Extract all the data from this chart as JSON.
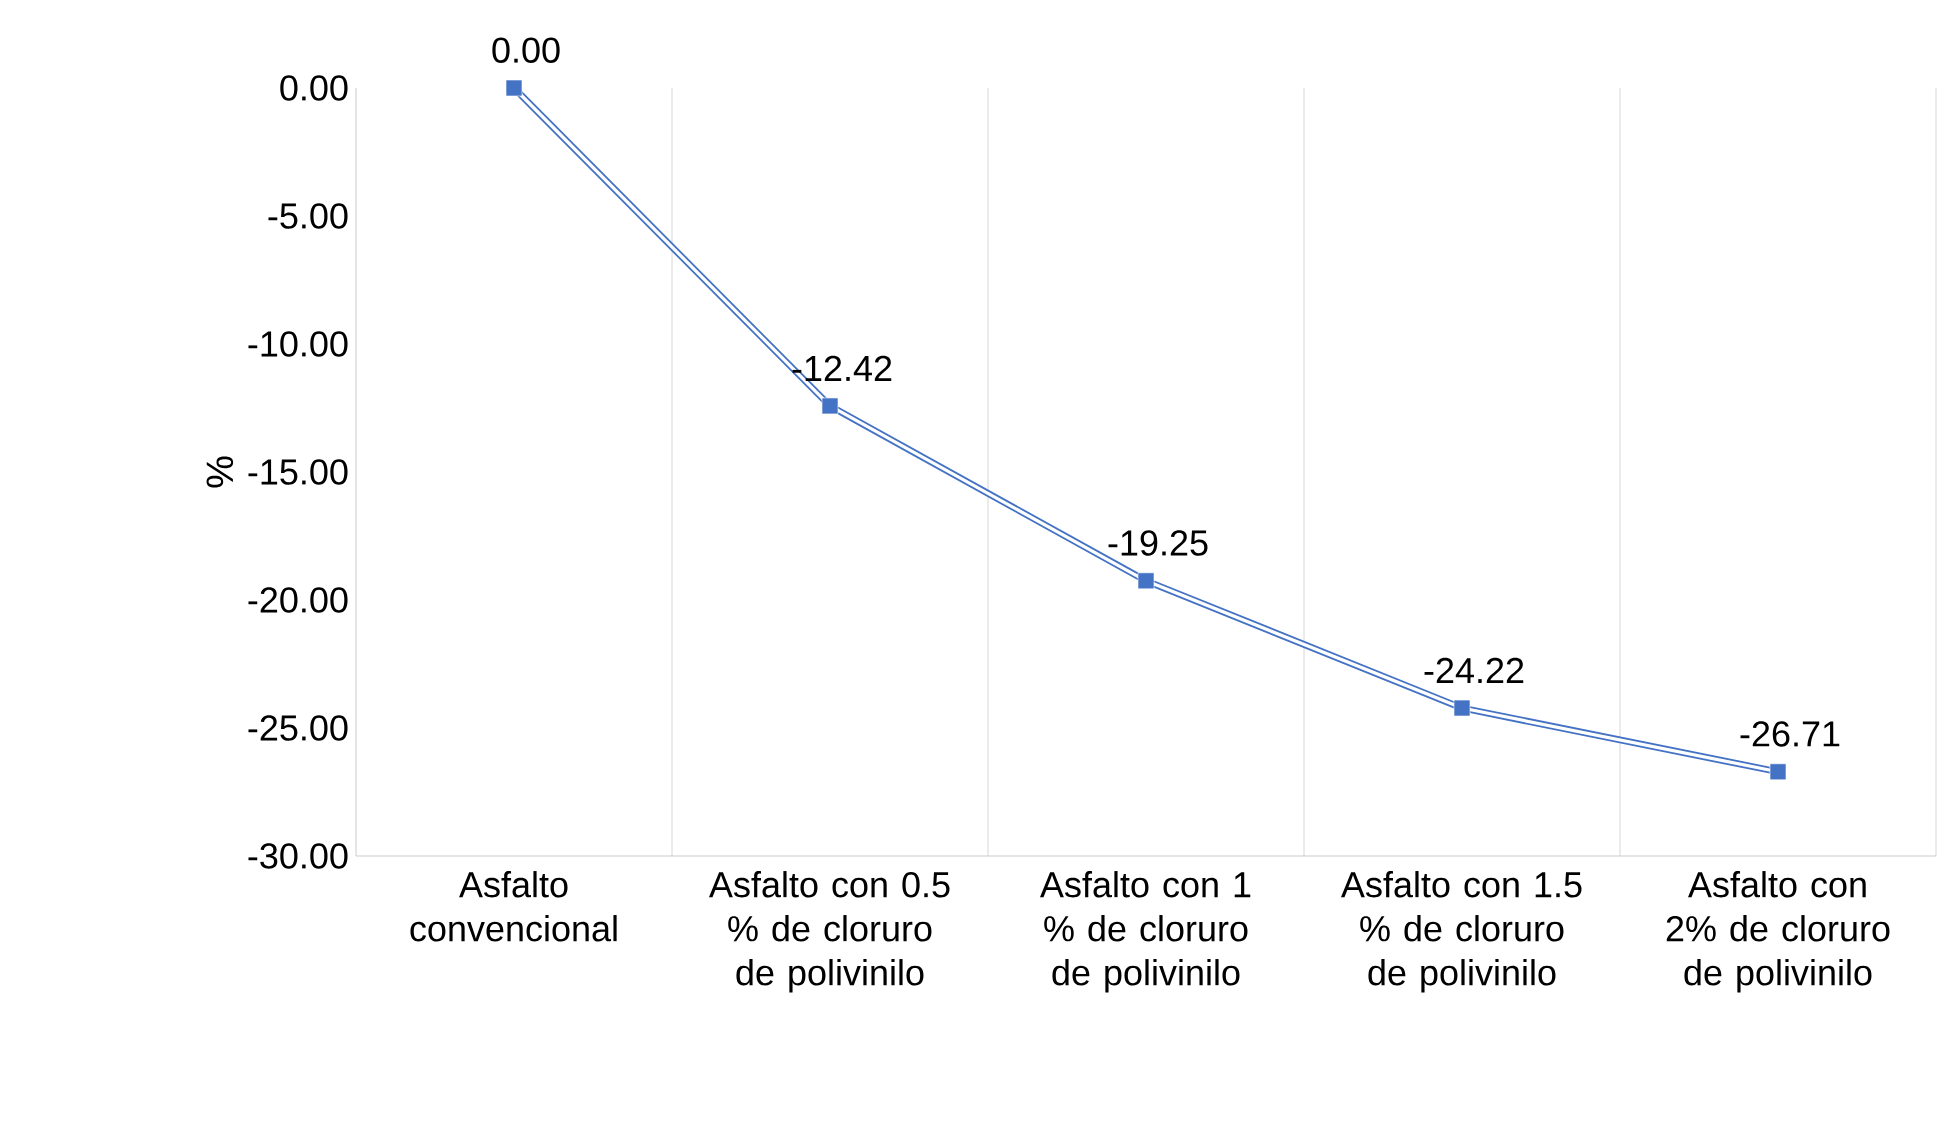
{
  "chart_data": {
    "type": "line",
    "ylabel": "%",
    "categories": [
      "Asfalto convencional",
      "Asfalto con 0.5 % de cloruro de polivinilo",
      "Asfalto con 1 % de cloruro de polivinilo",
      "Asfalto con 1.5 % de cloruro de polivinilo",
      "Asfalto con 2% de cloruro de polivinilo"
    ],
    "values": [
      0.0,
      -12.42,
      -19.25,
      -24.22,
      -26.71
    ],
    "value_labels": [
      "0.00",
      "-12.42",
      "-19.25",
      "-24.22",
      "-26.71"
    ],
    "color": "#4472c4",
    "marker": "square",
    "line_style": "solid",
    "grid": "x",
    "ylim": [
      -30,
      0
    ],
    "yticks": [
      {
        "value": -30,
        "label": "-30.00"
      },
      {
        "value": -25,
        "label": "-25.00"
      },
      {
        "value": -20,
        "label": "-20.00"
      },
      {
        "value": -15,
        "label": "-15.00"
      },
      {
        "value": -10,
        "label": "-10.00"
      },
      {
        "value": -5,
        "label": "-5.00"
      },
      {
        "value": 0,
        "label": "0.00"
      }
    ]
  }
}
